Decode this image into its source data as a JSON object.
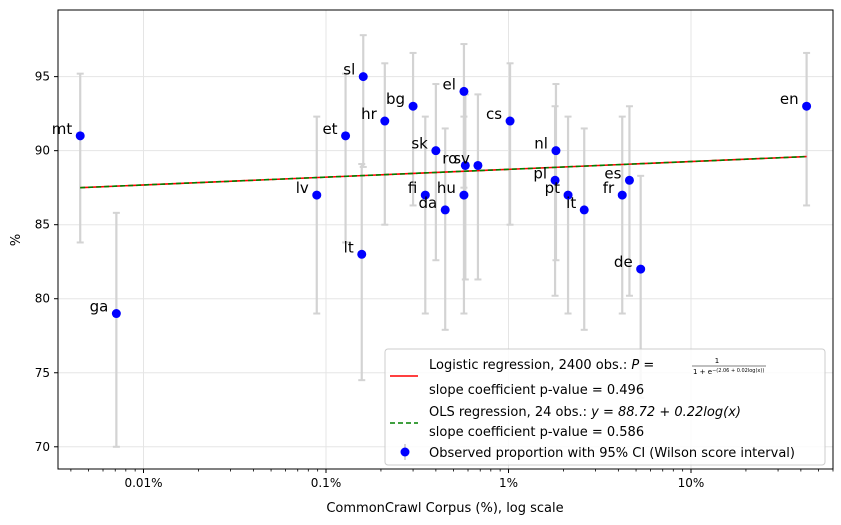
{
  "chart_data": {
    "type": "scatter",
    "title": "",
    "xlabel": "CommonCrawl Corpus (%), log scale",
    "ylabel": "%",
    "xscale": "log",
    "xlim": [
      0.0034,
      60
    ],
    "ylim": [
      68.5,
      99.5
    ],
    "x_ticks": [
      {
        "value": 0.01,
        "label": "0.01%"
      },
      {
        "value": 0.1,
        "label": "0.1%"
      },
      {
        "value": 1,
        "label": "1%"
      },
      {
        "value": 10,
        "label": "10%"
      }
    ],
    "y_ticks": [
      70,
      75,
      80,
      85,
      90,
      95
    ],
    "grid": true,
    "points": [
      {
        "label": "mt",
        "x": 0.0045,
        "y": 91,
        "ci_low": 83.8,
        "ci_high": 95.2
      },
      {
        "label": "ga",
        "x": 0.0071,
        "y": 79,
        "ci_low": 70.0,
        "ci_high": 85.8
      },
      {
        "label": "lv",
        "x": 0.089,
        "y": 87,
        "ci_low": 79.0,
        "ci_high": 92.3
      },
      {
        "label": "et",
        "x": 0.128,
        "y": 91,
        "ci_low": 83.8,
        "ci_high": 95.2
      },
      {
        "label": "sl",
        "x": 0.16,
        "y": 95,
        "ci_low": 88.9,
        "ci_high": 97.8
      },
      {
        "label": "lt",
        "x": 0.157,
        "y": 83,
        "ci_low": 74.5,
        "ci_high": 89.1
      },
      {
        "label": "hr",
        "x": 0.21,
        "y": 92,
        "ci_low": 85.0,
        "ci_high": 95.9
      },
      {
        "label": "bg",
        "x": 0.3,
        "y": 93,
        "ci_low": 86.3,
        "ci_high": 96.6
      },
      {
        "label": "fi",
        "x": 0.35,
        "y": 87,
        "ci_low": 79.0,
        "ci_high": 92.3
      },
      {
        "label": "sk",
        "x": 0.4,
        "y": 90,
        "ci_low": 82.6,
        "ci_high": 94.5
      },
      {
        "label": "da",
        "x": 0.45,
        "y": 86,
        "ci_low": 77.9,
        "ci_high": 91.5
      },
      {
        "label": "el",
        "x": 0.57,
        "y": 94,
        "ci_low": 87.5,
        "ci_high": 97.2
      },
      {
        "label": "hu",
        "x": 0.57,
        "y": 87,
        "ci_low": 79.0,
        "ci_high": 92.3
      },
      {
        "label": "ro",
        "x": 0.58,
        "y": 89,
        "ci_low": 81.3,
        "ci_high": 93.8
      },
      {
        "label": "sv",
        "x": 0.68,
        "y": 89,
        "ci_low": 81.3,
        "ci_high": 93.8
      },
      {
        "label": "cs",
        "x": 1.02,
        "y": 92,
        "ci_low": 85.0,
        "ci_high": 95.9
      },
      {
        "label": "nl",
        "x": 1.82,
        "y": 90,
        "ci_low": 82.6,
        "ci_high": 94.5
      },
      {
        "label": "pl",
        "x": 1.8,
        "y": 88,
        "ci_low": 80.2,
        "ci_high": 93.0
      },
      {
        "label": "pt",
        "x": 2.12,
        "y": 87,
        "ci_low": 79.0,
        "ci_high": 92.3
      },
      {
        "label": "it",
        "x": 2.6,
        "y": 86,
        "ci_low": 77.9,
        "ci_high": 91.5
      },
      {
        "label": "es",
        "x": 4.6,
        "y": 88,
        "ci_low": 80.2,
        "ci_high": 93.0
      },
      {
        "label": "fr",
        "x": 4.2,
        "y": 87,
        "ci_low": 79.0,
        "ci_high": 92.3
      },
      {
        "label": "de",
        "x": 5.3,
        "y": 82,
        "ci_low": 73.3,
        "ci_high": 88.3
      },
      {
        "label": "en",
        "x": 43.0,
        "y": 93,
        "ci_low": 86.3,
        "ci_high": 96.6
      }
    ],
    "regression_lines": [
      {
        "name": "Logistic regression",
        "x_start": 0.0045,
        "x_end": 43.0,
        "y_start": 87.5,
        "y_end": 89.6,
        "color": "#ff0000",
        "style": "solid"
      },
      {
        "name": "OLS regression",
        "x_start": 0.0045,
        "x_end": 43.0,
        "y_start": 87.5,
        "y_end": 89.6,
        "color": "#008000",
        "style": "dashed"
      }
    ],
    "legend": {
      "placement": "lower-right",
      "entries": [
        {
          "line1": "Logistic regression, 2400 obs.: ",
          "formula_lhs": "P = ",
          "formula_num": "1",
          "formula_den": "1 + e",
          "formula_sup": "−(2.06 + 0.02log(x))",
          "line2": "slope coefficient p-value = 0.496"
        },
        {
          "line1": "OLS regression, 24 obs.: ",
          "formula": "y = 88.72 + 0.22log(x)",
          "line2": "slope coefficient p-value = 0.586"
        },
        {
          "line1": "Observed proportion with 95% CI (Wilson score interval)"
        }
      ]
    },
    "colors": {
      "points": "#0000ff",
      "errorbars": "#d3d3d3",
      "grid": "#e5e5e5"
    }
  }
}
